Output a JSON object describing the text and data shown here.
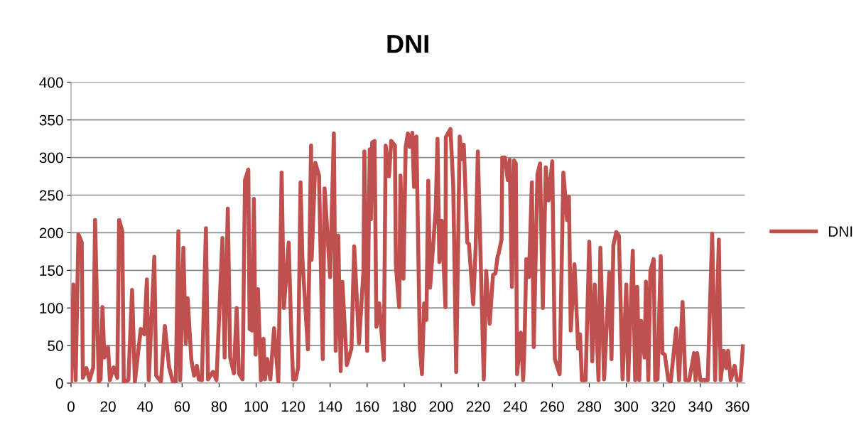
{
  "chart_data": {
    "type": "line",
    "title": "DNI",
    "legend": "right",
    "grid": "y",
    "xlim": [
      0,
      364
    ],
    "xticks": [
      0,
      20,
      40,
      60,
      80,
      100,
      120,
      140,
      160,
      180,
      200,
      220,
      240,
      260,
      280,
      300,
      320,
      340,
      360
    ],
    "ylim": [
      0,
      400
    ],
    "yticks": [
      0,
      50,
      100,
      150,
      200,
      250,
      300,
      350,
      400
    ],
    "series": [
      {
        "name": "DNI",
        "color": "#c0504d",
        "x": [
          0,
          1.3,
          2.5,
          4,
          5.8,
          6.4,
          8.3,
          10,
          12,
          13,
          15,
          16,
          17,
          18,
          20,
          21,
          23,
          25,
          26,
          27.7,
          28.5,
          31,
          33,
          34.5,
          37.7,
          39.6,
          41,
          42,
          45,
          46,
          48.6,
          50.7,
          53,
          55,
          56.6,
          58,
          59,
          60.7,
          62,
          63,
          65,
          66.5,
          68,
          69,
          70.7,
          72.9,
          74,
          76.7,
          78.6,
          81.8,
          83,
          84.7,
          86,
          88,
          89.5,
          90.7,
          92.7,
          94,
          95.8,
          96.5,
          97.8,
          98.8,
          99.7,
          101,
          102.6,
          104,
          104.8,
          106,
          107.7,
          109.7,
          112,
          113.8,
          115,
          117.6,
          119,
          120,
          121.4,
          122.7,
          124,
          125,
          128,
          129.7,
          130,
          132,
          134,
          136,
          137,
          140,
          142,
          143,
          144.4,
          145.7,
          146.6,
          149,
          151.5,
          153,
          155.6,
          158,
          158.5,
          160,
          161.4,
          162,
          162.7,
          164,
          165,
          166.5,
          169,
          170,
          171.8,
          173,
          175,
          175.5,
          177.3,
          178,
          179.6,
          180.8,
          182,
          183,
          184.4,
          185.3,
          186.6,
          188.5,
          189.6,
          190.8,
          192,
          193,
          194,
          197,
          198,
          199,
          200.3,
          202.3,
          202.5,
          205,
          206.5,
          208.1,
          210,
          211.3,
          212.2,
          214.1,
          215,
          217.3,
          218.6,
          219.8,
          223,
          224.3,
          226.2,
          228,
          229.3,
          230.5,
          231,
          232.6,
          233,
          234.4,
          236,
          237,
          238.2,
          239.4,
          240.3,
          241,
          243,
          244.3,
          245,
          246,
          247.4,
          249,
          250,
          252,
          253.4,
          254.9,
          256.5,
          258,
          260,
          261.4,
          264,
          266,
          268,
          269,
          270,
          272,
          274,
          275,
          276,
          278,
          280,
          281.6,
          283,
          285,
          286,
          288,
          290.8,
          292,
          293,
          294.6,
          296,
          298,
          300,
          301,
          303.5,
          304.8,
          305.9,
          307,
          308,
          309.9,
          310.6,
          311.9,
          313,
          314.8,
          315.6,
          316.9,
          318.6,
          319.5,
          320.8,
          322.7,
          324,
          327,
          328.5,
          330.4,
          331.9,
          334,
          336.6,
          337.4,
          338.3,
          340,
          344,
          346.4,
          348,
          350,
          351,
          352.7,
          354,
          355,
          356.4,
          358.5,
          359.8,
          361.7,
          363
        ],
        "values": [
          2,
          131,
          4,
          198,
          187,
          7,
          20,
          4,
          21,
          217,
          2,
          5,
          101,
          34,
          48,
          4,
          21,
          7,
          217,
          202,
          2,
          4,
          124,
          2,
          72,
          65,
          138,
          4,
          168,
          10,
          2,
          76,
          21,
          2,
          2,
          202,
          4,
          180,
          53,
          113,
          31,
          10,
          23,
          5,
          4,
          206,
          5,
          15,
          4,
          193,
          34,
          232,
          34,
          13,
          100,
          13,
          5,
          270,
          284,
          72,
          70,
          245,
          38,
          125,
          4,
          59,
          5,
          32,
          5,
          73,
          2,
          280,
          100,
          187,
          67,
          5,
          5,
          21,
          267,
          166,
          45,
          316,
          164,
          293,
          276,
          32,
          259,
          141,
          332,
          43,
          196,
          16,
          135,
          24,
          46,
          182,
          53,
          150,
          308,
          43,
          311,
          218,
          320,
          322,
          75,
          106,
          31,
          316,
          275,
          322,
          316,
          157,
          101,
          276,
          139,
          314,
          332,
          314,
          333,
          261,
          328,
          46,
          12,
          106,
          84,
          269,
          127,
          229,
          325,
          161,
          216,
          101,
          327,
          338,
          263,
          15,
          328,
          298,
          317,
          187,
          185,
          105,
          179,
          308,
          5,
          149,
          79,
          144,
          146,
          169,
          172,
          191,
          300,
          300,
          270,
          297,
          128,
          296,
          292,
          12,
          67,
          4,
          54,
          165,
          141,
          267,
          48,
          278,
          292,
          100,
          287,
          243,
          295,
          32,
          12,
          280,
          217,
          248,
          70,
          158,
          46,
          65,
          4,
          4,
          188,
          29,
          131,
          4,
          180,
          5,
          147,
          32,
          183,
          201,
          196,
          5,
          131,
          4,
          176,
          4,
          128,
          4,
          83,
          34,
          135,
          4,
          149,
          165,
          4,
          5,
          169,
          40,
          38,
          4,
          2,
          73,
          4,
          108,
          4,
          4,
          40,
          4,
          40,
          4,
          4,
          199,
          4,
          191,
          4,
          43,
          20,
          43,
          4,
          23,
          4,
          4,
          49
        ]
      }
    ]
  }
}
